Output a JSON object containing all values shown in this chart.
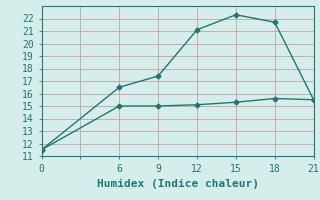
{
  "xlabel": "Humidex (Indice chaleur)",
  "background_color": "#d6eeeb",
  "line_color": "#1a7a6e",
  "line1_x": [
    0,
    6,
    9,
    12,
    15,
    18,
    21
  ],
  "line1_y": [
    11.5,
    16.5,
    17.4,
    21.1,
    22.3,
    21.7,
    15.5
  ],
  "line2_x": [
    0,
    6,
    9,
    12,
    15,
    18,
    21
  ],
  "line2_y": [
    11.5,
    15.0,
    15.0,
    15.1,
    15.3,
    15.6,
    15.5
  ],
  "xlim": [
    0,
    21
  ],
  "ylim": [
    11,
    23
  ],
  "xticks": [
    0,
    6,
    9,
    12,
    15,
    18,
    21
  ],
  "xgrid_ticks": [
    0,
    3,
    6,
    9,
    12,
    15,
    18,
    21
  ],
  "yticks": [
    11,
    12,
    13,
    14,
    15,
    16,
    17,
    18,
    19,
    20,
    21,
    22
  ],
  "grid_color": "#c8a0a0",
  "marker": "D",
  "marker_size": 2.5,
  "line_width": 1.0,
  "font_family": "monospace",
  "xlabel_fontsize": 8,
  "tick_fontsize": 7
}
